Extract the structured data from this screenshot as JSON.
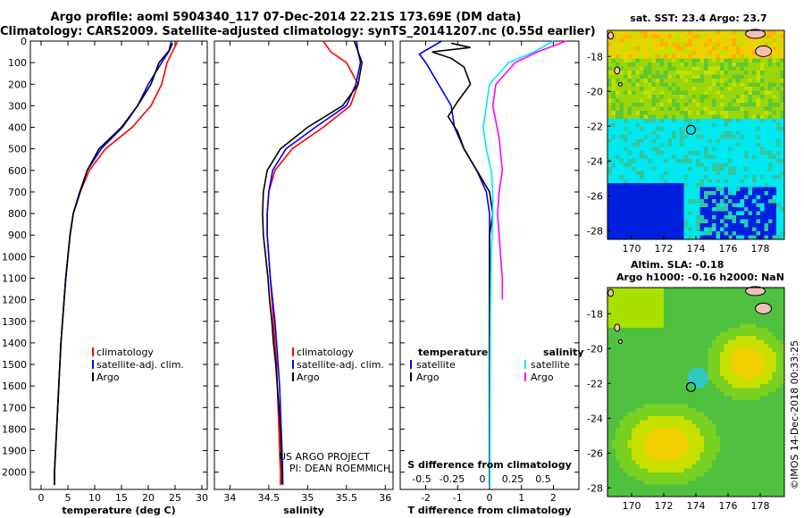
{
  "title_line1": "Argo profile: aoml 5904340_117 07-Dec-2014 22.21S 173.69E (DM data)",
  "title_line2": "Climatology: CARS2009. Satellite-adjusted climatology: synTS_20141207.nc (0.55d earlier)",
  "sst_heading": "sat. SST: 23.4 Argo: 23.7",
  "altimetry_line1": "Altim. SLA: -0.18",
  "altimetry_line2": "Argo h1000: -0.16 h2000: NaN",
  "imos_stamp": "©IMOS 14-Dec-2018 00:33:25",
  "credit_line1": "US ARGO PROJECT",
  "credit_line2": "PI: DEAN ROEMMICH",
  "colors": {
    "climatology": "#ff0000",
    "satellite": "#0000ff",
    "argo": "#000000",
    "sat_salinity": "#00e5ff",
    "argo_salinity": "#ff00ff"
  },
  "chart_data": [
    {
      "type": "line",
      "xlabel": "temperature (deg C)",
      "xlim": [
        -2,
        31
      ],
      "xticks": [
        "0",
        "5",
        "10",
        "15",
        "20",
        "25",
        "30"
      ],
      "ylim": [
        2080,
        0
      ],
      "yticks": [
        "0",
        "100",
        "200",
        "300",
        "400",
        "500",
        "600",
        "700",
        "800",
        "900",
        "1000",
        "1100",
        "1200",
        "1300",
        "1400",
        "1500",
        "1600",
        "1700",
        "1800",
        "1900",
        "2000"
      ],
      "legend": [
        "climatology",
        "satellite-adj. clim.",
        "Argo"
      ],
      "series": [
        {
          "name": "climatology",
          "color": "#ff0000",
          "points": [
            [
              25.5,
              0
            ],
            [
              24.5,
              50
            ],
            [
              23.5,
              100
            ],
            [
              22.5,
              200
            ],
            [
              20.5,
              300
            ],
            [
              17,
              400
            ],
            [
              12,
              500
            ],
            [
              9,
              600
            ],
            [
              7.3,
              700
            ],
            [
              6,
              800
            ],
            [
              5.4,
              900
            ],
            [
              5,
              1000
            ],
            [
              4.6,
              1100
            ],
            [
              4.3,
              1200
            ],
            [
              4,
              1300
            ],
            [
              3.7,
              1400
            ],
            [
              3.5,
              1500
            ],
            [
              3.3,
              1600
            ],
            [
              3.1,
              1700
            ],
            [
              2.9,
              1800
            ],
            [
              2.7,
              1900
            ],
            [
              2.5,
              2000
            ],
            [
              2.5,
              2060
            ]
          ]
        },
        {
          "name": "satellite-adj. clim.",
          "color": "#0000ff",
          "points": [
            [
              24.3,
              0
            ],
            [
              23.8,
              50
            ],
            [
              22.5,
              100
            ],
            [
              20,
              200
            ],
            [
              18,
              300
            ],
            [
              15.2,
              400
            ],
            [
              11.2,
              500
            ],
            [
              8.6,
              600
            ],
            [
              7.2,
              700
            ],
            [
              6,
              800
            ],
            [
              5.4,
              900
            ],
            [
              5,
              1000
            ],
            [
              4.6,
              1100
            ],
            [
              4.3,
              1200
            ],
            [
              4,
              1300
            ],
            [
              3.7,
              1400
            ],
            [
              3.5,
              1500
            ],
            [
              3.3,
              1600
            ],
            [
              3.1,
              1700
            ],
            [
              2.9,
              1800
            ],
            [
              2.7,
              1900
            ],
            [
              2.5,
              2000
            ],
            [
              2.5,
              2060
            ]
          ]
        },
        {
          "name": "Argo",
          "color": "#000000",
          "points": [
            [
              24.5,
              10
            ],
            [
              24,
              40
            ],
            [
              22,
              100
            ],
            [
              20.5,
              200
            ],
            [
              18,
              300
            ],
            [
              15,
              400
            ],
            [
              10.8,
              500
            ],
            [
              8.6,
              600
            ],
            [
              7.3,
              700
            ],
            [
              6,
              800
            ],
            [
              5.4,
              900
            ],
            [
              5,
              1000
            ],
            [
              4.6,
              1100
            ],
            [
              4.3,
              1200
            ],
            [
              4,
              1300
            ],
            [
              3.7,
              1400
            ],
            [
              3.5,
              1500
            ],
            [
              3.3,
              1600
            ],
            [
              3.1,
              1700
            ],
            [
              2.9,
              1800
            ],
            [
              2.7,
              1900
            ],
            [
              2.5,
              2000
            ],
            [
              2.5,
              2055
            ]
          ]
        }
      ]
    },
    {
      "type": "line",
      "xlabel": "salinity",
      "xlim": [
        33.8,
        36.1
      ],
      "xticks": [
        "34",
        "34.5",
        "35",
        "35.5",
        "36"
      ],
      "ylim": [
        2080,
        0
      ],
      "legend": [
        "climatology",
        "satellite-adj. clim.",
        "Argo"
      ],
      "series": [
        {
          "name": "climatology",
          "color": "#ff0000",
          "points": [
            [
              35.2,
              0
            ],
            [
              35.3,
              50
            ],
            [
              35.5,
              100
            ],
            [
              35.65,
              200
            ],
            [
              35.55,
              300
            ],
            [
              35.2,
              400
            ],
            [
              34.8,
              500
            ],
            [
              34.58,
              600
            ],
            [
              34.5,
              700
            ],
            [
              34.48,
              800
            ],
            [
              34.48,
              900
            ],
            [
              34.5,
              1000
            ],
            [
              34.52,
              1100
            ],
            [
              34.54,
              1200
            ],
            [
              34.56,
              1300
            ],
            [
              34.58,
              1400
            ],
            [
              34.6,
              1500
            ],
            [
              34.61,
              1600
            ],
            [
              34.62,
              1700
            ],
            [
              34.63,
              1800
            ],
            [
              34.64,
              1900
            ],
            [
              34.65,
              2000
            ],
            [
              34.65,
              2060
            ]
          ]
        },
        {
          "name": "satellite-adj. clim.",
          "color": "#0000ff",
          "points": [
            [
              35.63,
              0
            ],
            [
              35.65,
              50
            ],
            [
              35.68,
              100
            ],
            [
              35.62,
              200
            ],
            [
              35.5,
              300
            ],
            [
              35.1,
              400
            ],
            [
              34.72,
              500
            ],
            [
              34.55,
              600
            ],
            [
              34.5,
              700
            ],
            [
              34.48,
              800
            ],
            [
              34.48,
              900
            ],
            [
              34.5,
              1000
            ],
            [
              34.52,
              1100
            ],
            [
              34.55,
              1200
            ],
            [
              34.58,
              1300
            ],
            [
              34.6,
              1400
            ],
            [
              34.62,
              1500
            ],
            [
              34.64,
              1600
            ],
            [
              34.65,
              1700
            ],
            [
              34.66,
              1800
            ],
            [
              34.67,
              1900
            ],
            [
              34.68,
              2000
            ],
            [
              34.68,
              2060
            ]
          ]
        },
        {
          "name": "Argo",
          "color": "#000000",
          "points": [
            [
              35.6,
              0
            ],
            [
              35.65,
              50
            ],
            [
              35.7,
              100
            ],
            [
              35.65,
              200
            ],
            [
              35.45,
              300
            ],
            [
              35.0,
              400
            ],
            [
              34.65,
              500
            ],
            [
              34.48,
              600
            ],
            [
              34.43,
              700
            ],
            [
              34.42,
              800
            ],
            [
              34.43,
              900
            ],
            [
              34.46,
              1000
            ],
            [
              34.49,
              1100
            ],
            [
              34.51,
              1200
            ],
            [
              34.54,
              1300
            ],
            [
              34.56,
              1400
            ],
            [
              34.59,
              1500
            ],
            [
              34.61,
              1600
            ],
            [
              34.63,
              1700
            ],
            [
              34.65,
              1800
            ],
            [
              34.66,
              1900
            ],
            [
              34.67,
              2000
            ],
            [
              34.67,
              2055
            ]
          ]
        }
      ]
    },
    {
      "type": "line",
      "xlabel": "T difference from climatology",
      "xlim": [
        -2.8,
        2.8
      ],
      "xticks": [
        "-2",
        "-1",
        "0",
        "1",
        "2"
      ],
      "x2label": "S difference from climatology",
      "x2ticks": [
        "-0.5",
        "-0.25",
        "0",
        "0.25",
        "0.5"
      ],
      "ylim": [
        2080,
        0
      ],
      "legend_temperature_heading": "temperature",
      "legend_salinity_heading": "salinity",
      "legend_temperature": [
        "satellite",
        "Argo"
      ],
      "legend_salinity": [
        "satellite",
        "Argo"
      ],
      "series": [
        {
          "name": "satellite",
          "color": "#0000ff",
          "points": [
            [
              -1.5,
              0
            ],
            [
              -2.2,
              60
            ],
            [
              -2,
              100
            ],
            [
              -1.6,
              200
            ],
            [
              -1.2,
              300
            ],
            [
              -1.1,
              400
            ],
            [
              -0.8,
              500
            ],
            [
              -0.4,
              600
            ],
            [
              -0.1,
              700
            ],
            [
              0,
              800
            ],
            [
              0,
              1000
            ],
            [
              0,
              1500
            ],
            [
              0,
              2060
            ]
          ]
        },
        {
          "name": "Argo",
          "color": "#000000",
          "points": [
            [
              -1.2,
              10
            ],
            [
              -0.6,
              30
            ],
            [
              -1.8,
              50
            ],
            [
              -1.2,
              80
            ],
            [
              -0.8,
              120
            ],
            [
              -0.6,
              200
            ],
            [
              -1.0,
              280
            ],
            [
              -1.3,
              350
            ],
            [
              -1,
              420
            ],
            [
              -0.8,
              500
            ],
            [
              -0.4,
              600
            ],
            [
              0,
              700
            ],
            [
              0.1,
              800
            ],
            [
              0,
              900
            ],
            [
              0,
              1000
            ],
            [
              0,
              1200
            ],
            [
              0,
              1500
            ],
            [
              0,
              2055
            ]
          ]
        },
        {
          "name": "satellite",
          "color": "#00e5ff",
          "points": [
            [
              2.0,
              0
            ],
            [
              1.4,
              50
            ],
            [
              0.6,
              100
            ],
            [
              0,
              200
            ],
            [
              -0.1,
              300
            ],
            [
              -0.2,
              400
            ],
            [
              -0.1,
              500
            ],
            [
              0.05,
              600
            ],
            [
              0.1,
              700
            ],
            [
              0.1,
              800
            ],
            [
              0.08,
              900
            ],
            [
              0.05,
              1000
            ],
            [
              0.03,
              1200
            ],
            [
              0.02,
              1500
            ],
            [
              0.01,
              2060
            ]
          ]
        },
        {
          "name": "Argo",
          "color": "#ff00ff",
          "points": [
            [
              2.4,
              0
            ],
            [
              1.5,
              50
            ],
            [
              0.8,
              100
            ],
            [
              0.2,
              200
            ],
            [
              0.1,
              300
            ],
            [
              0.3,
              450
            ],
            [
              0.4,
              600
            ],
            [
              0.3,
              700
            ],
            [
              0.25,
              800
            ],
            [
              0.3,
              900
            ],
            [
              0.35,
              1000
            ],
            [
              0.4,
              1100
            ],
            [
              0.4,
              1200
            ]
          ]
        }
      ]
    }
  ],
  "maps": [
    {
      "name": "sst-map",
      "xticks": [
        "170",
        "172",
        "174",
        "176",
        "178"
      ],
      "yticks": [
        "-18",
        "-20",
        "-22",
        "-24",
        "-26",
        "-28"
      ],
      "profile_lon": 173.69,
      "profile_lat": -22.21
    },
    {
      "name": "sla-map",
      "xticks": [
        "170",
        "172",
        "174",
        "176",
        "178"
      ],
      "yticks": [
        "-18",
        "-20",
        "-22",
        "-24",
        "-26",
        "-28"
      ],
      "profile_lon": 173.69,
      "profile_lat": -22.21
    }
  ]
}
